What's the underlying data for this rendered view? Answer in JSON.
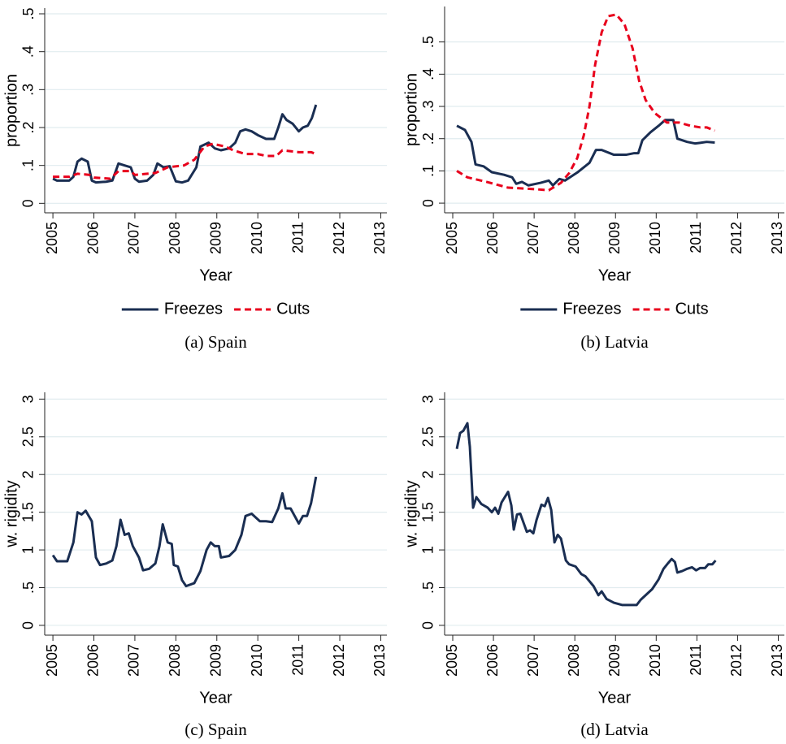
{
  "chart_data": [
    {
      "type": "line",
      "caption": "(a) Spain",
      "y_label": "proportion",
      "x_label": "Year",
      "xlim": [
        2004.8,
        2013.15
      ],
      "xticks": [
        2005,
        2006,
        2007,
        2008,
        2009,
        2010,
        2011,
        2012,
        2013
      ],
      "ylim": [
        -0.025,
        0.515
      ],
      "yticks": [
        0,
        {
          "value": 0.1,
          "label": ".1"
        },
        {
          "value": 0.2,
          "label": ".2"
        },
        {
          "value": 0.3,
          "label": ".3"
        },
        {
          "value": 0.4,
          "label": ".4"
        },
        {
          "value": 0.5,
          "label": ".5"
        }
      ],
      "grid": true,
      "legend": "bottom",
      "series": [
        {
          "name": "Freezes",
          "color": "#1a2e52",
          "x": [
            2005.0,
            2005.1,
            2005.4,
            2005.5,
            2005.6,
            2005.7,
            2005.85,
            2005.95,
            2006.05,
            2006.3,
            2006.45,
            2006.6,
            2006.75,
            2006.9,
            2007.0,
            2007.1,
            2007.3,
            2007.45,
            2007.55,
            2007.7,
            2007.85,
            2008.0,
            2008.15,
            2008.3,
            2008.5,
            2008.6,
            2008.8,
            2008.95,
            2009.1,
            2009.3,
            2009.45,
            2009.57,
            2009.7,
            2009.85,
            2010.0,
            2010.2,
            2010.4,
            2010.5,
            2010.6,
            2010.7,
            2010.85,
            2011.0,
            2011.1,
            2011.22,
            2011.32,
            2011.42
          ],
          "values": [
            0.065,
            0.06,
            0.06,
            0.07,
            0.11,
            0.118,
            0.11,
            0.06,
            0.055,
            0.057,
            0.06,
            0.105,
            0.1,
            0.095,
            0.065,
            0.057,
            0.06,
            0.075,
            0.105,
            0.095,
            0.098,
            0.058,
            0.055,
            0.06,
            0.095,
            0.15,
            0.16,
            0.145,
            0.14,
            0.145,
            0.16,
            0.19,
            0.195,
            0.19,
            0.18,
            0.17,
            0.17,
            0.2,
            0.235,
            0.22,
            0.21,
            0.19,
            0.2,
            0.205,
            0.225,
            0.26
          ]
        },
        {
          "name": "Cuts",
          "color": "#e8001c",
          "dash": true,
          "x": [
            2005.0,
            2005.4,
            2005.6,
            2005.9,
            2006.0,
            2006.4,
            2006.6,
            2006.9,
            2007.0,
            2007.5,
            2007.8,
            2008.2,
            2008.45,
            2008.7,
            2008.9,
            2009.2,
            2009.4,
            2009.7,
            2010.0,
            2010.2,
            2010.45,
            2010.6,
            2011.0,
            2011.3,
            2011.42
          ],
          "values": [
            0.07,
            0.07,
            0.078,
            0.075,
            0.068,
            0.065,
            0.085,
            0.085,
            0.075,
            0.08,
            0.095,
            0.1,
            0.115,
            0.15,
            0.157,
            0.15,
            0.14,
            0.13,
            0.13,
            0.125,
            0.125,
            0.14,
            0.135,
            0.135,
            0.13
          ]
        }
      ]
    },
    {
      "type": "line",
      "caption": "(b) Latvia",
      "y_label": "proportion",
      "x_label": "Year",
      "xlim": [
        2004.8,
        2013.15
      ],
      "xticks": [
        2005,
        2006,
        2007,
        2008,
        2009,
        2010,
        2011,
        2012,
        2013
      ],
      "ylim": [
        -0.03,
        0.61
      ],
      "yticks": [
        0,
        {
          "value": 0.1,
          "label": ".1"
        },
        {
          "value": 0.2,
          "label": ".2"
        },
        {
          "value": 0.3,
          "label": ".3"
        },
        {
          "value": 0.4,
          "label": ".4"
        },
        {
          "value": 0.5,
          "label": ".5"
        }
      ],
      "grid": true,
      "legend": "bottom",
      "series": [
        {
          "name": "Freezes",
          "color": "#1a2e52",
          "x": [
            2005.1,
            2005.3,
            2005.46,
            2005.56,
            2005.76,
            2005.96,
            2006.26,
            2006.46,
            2006.56,
            2006.7,
            2006.86,
            2007.16,
            2007.36,
            2007.46,
            2007.62,
            2007.76,
            2008.06,
            2008.36,
            2008.52,
            2008.66,
            2008.96,
            2009.26,
            2009.46,
            2009.56,
            2009.66,
            2009.86,
            2010.06,
            2010.22,
            2010.42,
            2010.52,
            2010.76,
            2010.96,
            2011.08,
            2011.24,
            2011.44
          ],
          "values": [
            0.24,
            0.227,
            0.19,
            0.12,
            0.114,
            0.096,
            0.088,
            0.08,
            0.06,
            0.066,
            0.055,
            0.063,
            0.07,
            0.055,
            0.075,
            0.07,
            0.095,
            0.125,
            0.165,
            0.165,
            0.15,
            0.15,
            0.155,
            0.155,
            0.195,
            0.22,
            0.24,
            0.258,
            0.258,
            0.2,
            0.19,
            0.185,
            0.187,
            0.19,
            0.188
          ]
        },
        {
          "name": "Cuts",
          "color": "#e8001c",
          "dash": true,
          "x": [
            2005.1,
            2005.36,
            2005.86,
            2006.36,
            2007.06,
            2007.36,
            2007.66,
            2007.86,
            2008.06,
            2008.22,
            2008.36,
            2008.5,
            2008.66,
            2008.82,
            2009.02,
            2009.22,
            2009.42,
            2009.58,
            2009.74,
            2009.96,
            2010.26,
            2010.56,
            2010.84,
            2011.08,
            2011.24,
            2011.44
          ],
          "values": [
            0.1,
            0.08,
            0.065,
            0.048,
            0.043,
            0.04,
            0.063,
            0.093,
            0.14,
            0.21,
            0.3,
            0.43,
            0.53,
            0.58,
            0.585,
            0.555,
            0.48,
            0.38,
            0.32,
            0.28,
            0.25,
            0.25,
            0.24,
            0.235,
            0.235,
            0.225
          ]
        }
      ]
    },
    {
      "type": "line",
      "caption": "(c) Spain",
      "y_label": "w. rigidity",
      "x_label": "Year",
      "xlim": [
        2004.8,
        2013.15
      ],
      "xticks": [
        2005,
        2006,
        2007,
        2008,
        2009,
        2010,
        2011,
        2012,
        2013
      ],
      "ylim": [
        -0.13,
        3.09
      ],
      "yticks": [
        0,
        {
          "value": 0.5,
          "label": ".5"
        },
        1,
        1.5,
        2,
        2.5,
        3
      ],
      "grid": true,
      "series": [
        {
          "color": "#1a2e52",
          "x": [
            2005.0,
            2005.1,
            2005.35,
            2005.5,
            2005.6,
            2005.7,
            2005.8,
            2005.95,
            2006.05,
            2006.15,
            2006.3,
            2006.45,
            2006.55,
            2006.65,
            2006.75,
            2006.85,
            2006.95,
            2007.1,
            2007.2,
            2007.35,
            2007.5,
            2007.6,
            2007.68,
            2007.8,
            2007.9,
            2007.95,
            2008.05,
            2008.15,
            2008.25,
            2008.45,
            2008.6,
            2008.75,
            2008.85,
            2008.95,
            2009.05,
            2009.1,
            2009.3,
            2009.45,
            2009.6,
            2009.7,
            2009.85,
            2010.05,
            2010.2,
            2010.35,
            2010.5,
            2010.6,
            2010.68,
            2010.8,
            2010.9,
            2011.0,
            2011.1,
            2011.2,
            2011.3,
            2011.42
          ],
          "values": [
            0.93,
            0.85,
            0.85,
            1.1,
            1.5,
            1.47,
            1.52,
            1.38,
            0.9,
            0.8,
            0.82,
            0.86,
            1.05,
            1.4,
            1.2,
            1.22,
            1.05,
            0.9,
            0.73,
            0.75,
            0.82,
            1.05,
            1.34,
            1.1,
            1.08,
            0.8,
            0.78,
            0.6,
            0.52,
            0.56,
            0.72,
            1.0,
            1.1,
            1.05,
            1.05,
            0.9,
            0.92,
            1.0,
            1.2,
            1.45,
            1.48,
            1.38,
            1.38,
            1.37,
            1.55,
            1.75,
            1.55,
            1.55,
            1.45,
            1.35,
            1.45,
            1.45,
            1.62,
            1.97
          ]
        }
      ]
    },
    {
      "type": "line",
      "caption": "(d) Latvia",
      "y_label": "w. rigidity",
      "x_label": "Year",
      "xlim": [
        2004.8,
        2013.15
      ],
      "xticks": [
        2005,
        2006,
        2007,
        2008,
        2009,
        2010,
        2011,
        2012,
        2013
      ],
      "ylim": [
        -0.13,
        3.09
      ],
      "yticks": [
        0,
        {
          "value": 0.5,
          "label": ".5"
        },
        1,
        1.5,
        2,
        2.5,
        3
      ],
      "grid": true,
      "series": [
        {
          "color": "#1a2e52",
          "x": [
            2005.1,
            2005.18,
            2005.26,
            2005.36,
            2005.42,
            2005.5,
            2005.58,
            2005.7,
            2005.86,
            2005.96,
            2006.04,
            2006.12,
            2006.2,
            2006.36,
            2006.44,
            2006.5,
            2006.58,
            2006.66,
            2006.82,
            2006.9,
            2006.98,
            2007.06,
            2007.18,
            2007.26,
            2007.34,
            2007.42,
            2007.5,
            2007.58,
            2007.66,
            2007.78,
            2007.86,
            2008.02,
            2008.16,
            2008.26,
            2008.46,
            2008.58,
            2008.66,
            2008.78,
            2008.96,
            2009.16,
            2009.36,
            2009.52,
            2009.62,
            2009.76,
            2009.9,
            2010.06,
            2010.18,
            2010.3,
            2010.38,
            2010.46,
            2010.52,
            2010.64,
            2010.76,
            2010.88,
            2010.98,
            2011.08,
            2011.2,
            2011.28,
            2011.38,
            2011.46
          ],
          "values": [
            2.34,
            2.55,
            2.58,
            2.68,
            2.37,
            1.56,
            1.7,
            1.61,
            1.56,
            1.5,
            1.56,
            1.48,
            1.63,
            1.77,
            1.59,
            1.27,
            1.47,
            1.48,
            1.24,
            1.26,
            1.22,
            1.4,
            1.6,
            1.58,
            1.69,
            1.53,
            1.1,
            1.2,
            1.15,
            0.86,
            0.81,
            0.78,
            0.68,
            0.65,
            0.52,
            0.4,
            0.45,
            0.35,
            0.3,
            0.27,
            0.27,
            0.27,
            0.34,
            0.41,
            0.48,
            0.61,
            0.75,
            0.83,
            0.88,
            0.84,
            0.7,
            0.72,
            0.75,
            0.77,
            0.73,
            0.76,
            0.76,
            0.81,
            0.81,
            0.86
          ]
        }
      ]
    }
  ]
}
